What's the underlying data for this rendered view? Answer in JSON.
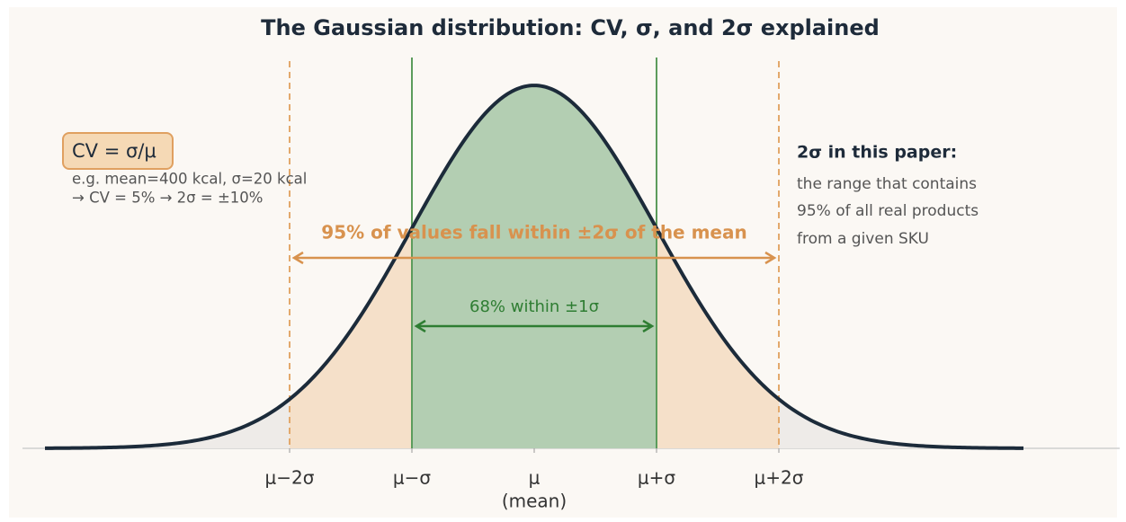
{
  "chart_data": {
    "type": "gaussian",
    "title": "The Gaussian distribution: CV, σ, and 2σ explained",
    "mu": 0,
    "sigma": 1,
    "xlim": [
      -4,
      4
    ],
    "ylim": [
      0,
      0.4
    ],
    "xticks": [
      {
        "value": -2,
        "label": "μ−2σ"
      },
      {
        "value": -1,
        "label": "μ−σ"
      },
      {
        "value": 0,
        "label": "μ"
      },
      {
        "value": 1,
        "label": "μ+σ"
      },
      {
        "value": 2,
        "label": "μ+2σ"
      }
    ],
    "mean_note": "(mean)",
    "curve_color": "#1c2b3a",
    "bands": [
      {
        "from": -4,
        "to": 4,
        "color": "#eeebe8"
      },
      {
        "from": -2,
        "to": 2,
        "color": "#f5e0c9",
        "edge_color": "#e3a96c",
        "edge_dash": true
      },
      {
        "from": -1,
        "to": 1,
        "color": "#b3ceb2",
        "edge_color": "#5c9c5c",
        "edge_dash": false
      }
    ],
    "arrows": [
      {
        "label": "95% of values fall within ±2σ of the mean",
        "from": -2,
        "to": 2,
        "color": "#d8924e"
      },
      {
        "label": "68% within ±1σ",
        "from": -1,
        "to": 1,
        "color": "#2e7d32"
      }
    ],
    "cv_box": {
      "formula": "CV = σ/μ",
      "lines": [
        "e.g. mean=400 kcal, σ=20 kcal",
        "→ CV = 5%  →  2σ = ±10%"
      ]
    },
    "note": {
      "title": "2σ in this paper:",
      "lines": [
        "the range that contains",
        "95% of all real products",
        "from a given SKU"
      ]
    }
  }
}
